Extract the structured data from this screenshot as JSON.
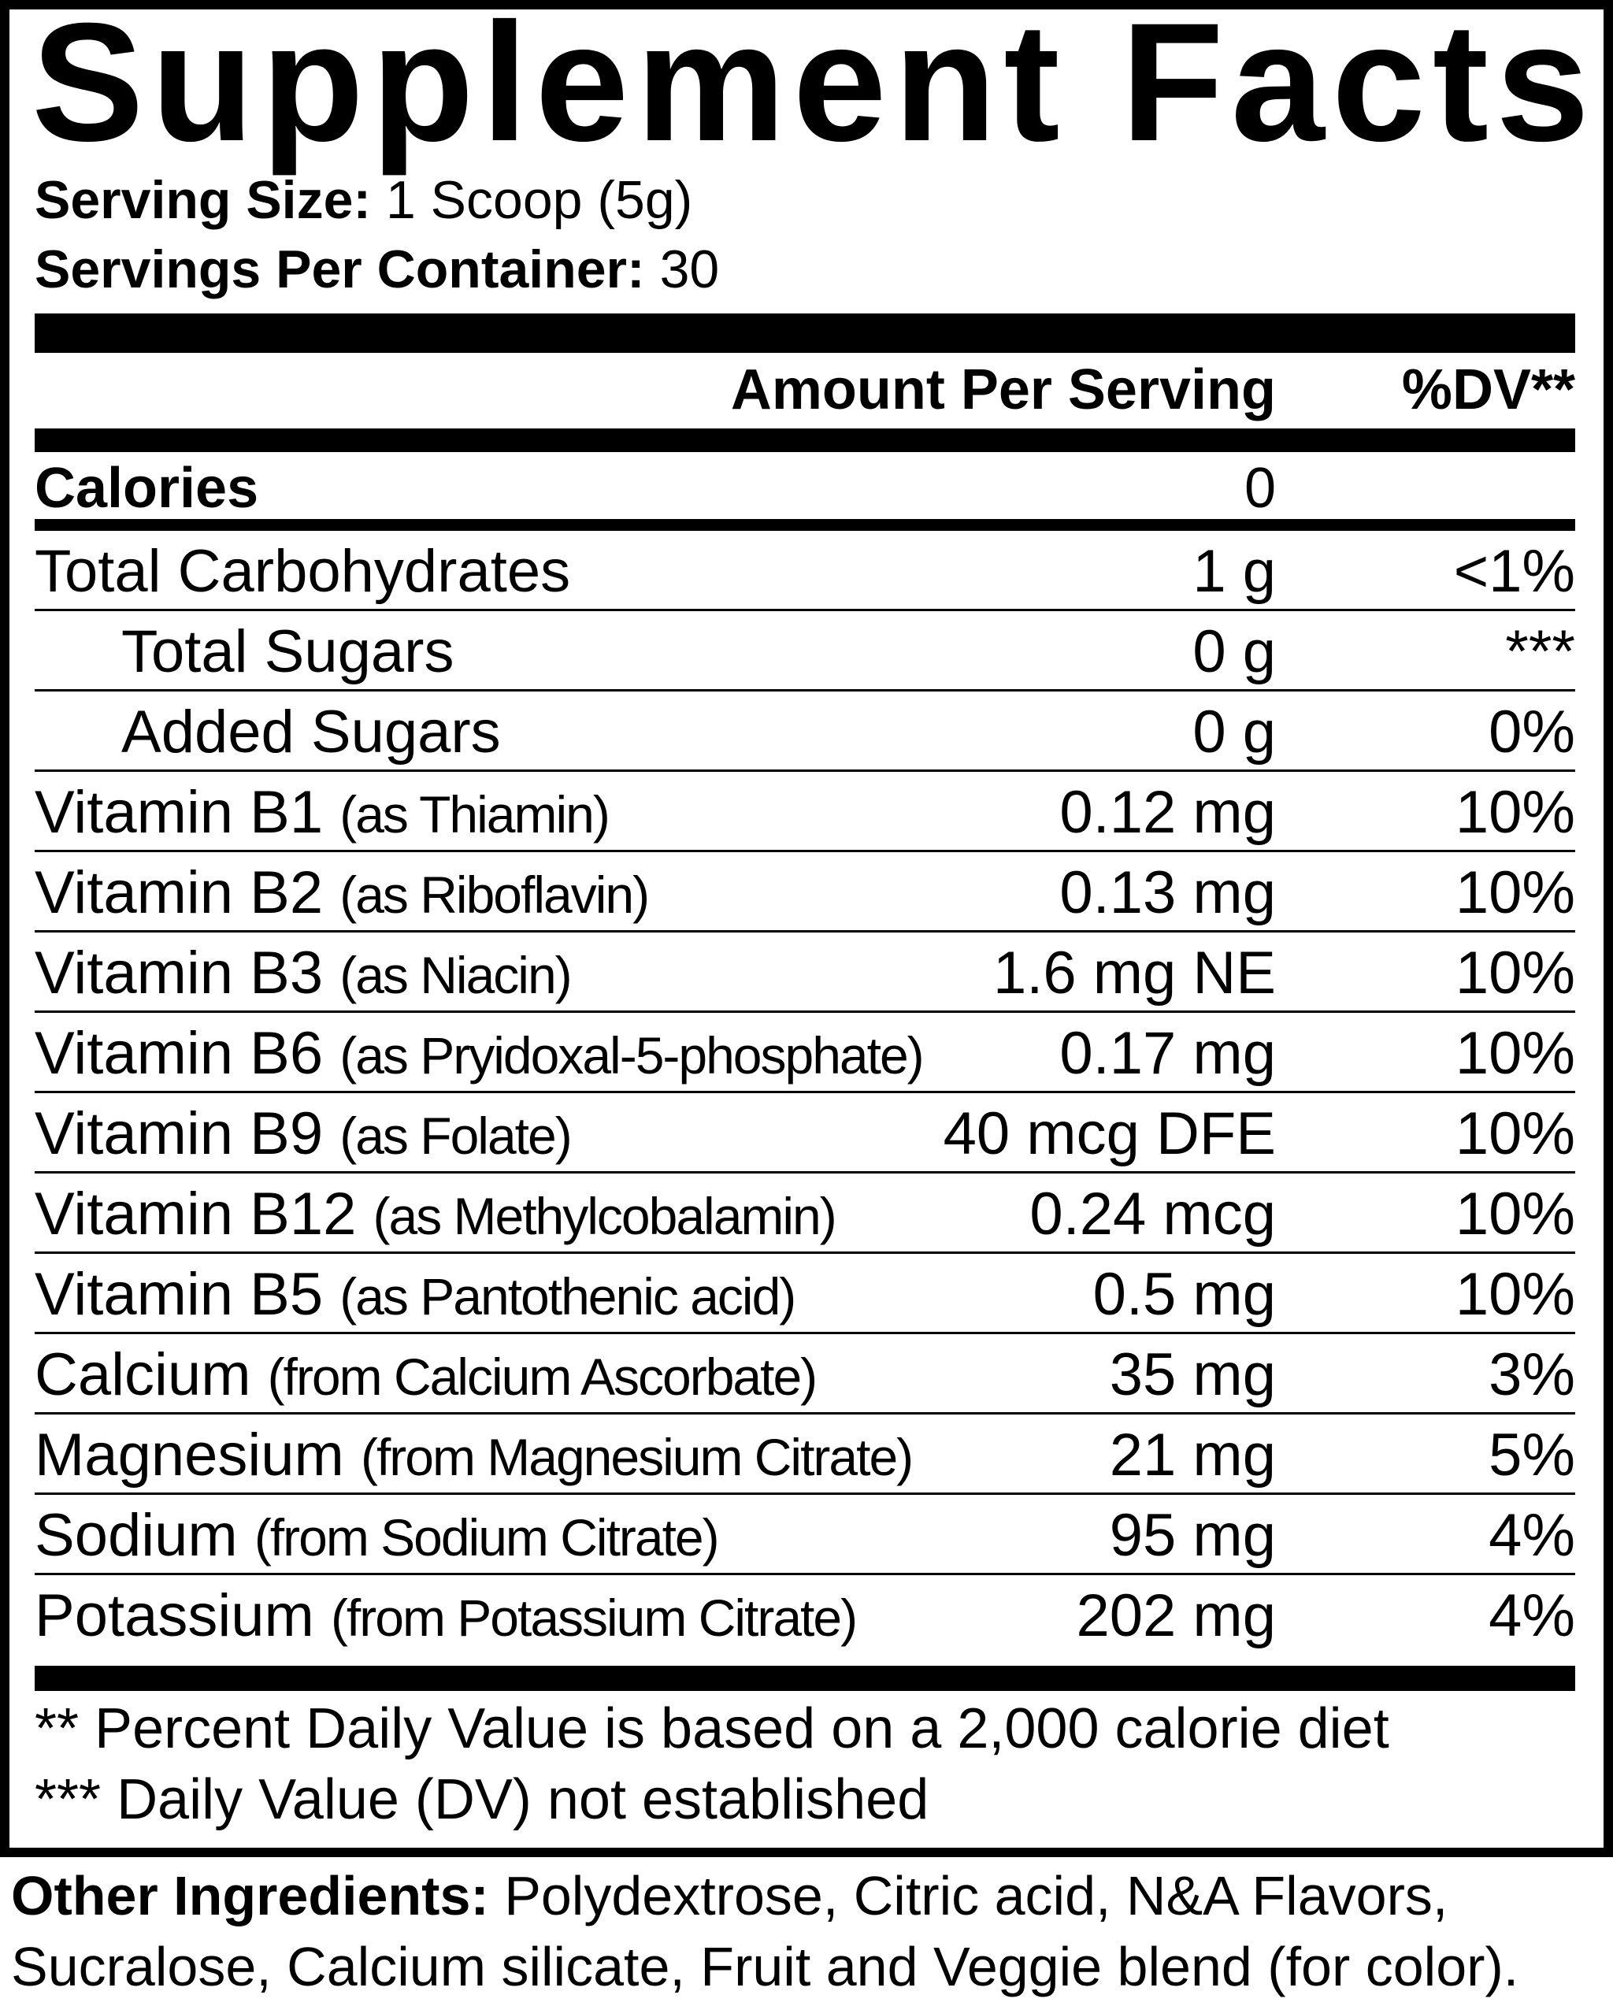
{
  "title": "Supplement Facts",
  "serving": {
    "size_label": "Serving Size:",
    "size_value": "1 Scoop (5g)",
    "per_container_label": "Servings Per Container:",
    "per_container_value": "30"
  },
  "header": {
    "amount": "Amount Per Serving",
    "dv": "%DV**"
  },
  "calories": {
    "label": "Calories",
    "amount": "0"
  },
  "rows": [
    {
      "name": "Total Carbohydrates",
      "sub": "",
      "amount": "1 g",
      "dv": "<1%"
    },
    {
      "name": "Total Sugars",
      "sub": "",
      "amount": "0 g",
      "dv": "***"
    },
    {
      "name": "Added Sugars",
      "sub": "",
      "amount": "0 g",
      "dv": "0%"
    },
    {
      "name": "Vitamin B1",
      "sub": "(as Thiamin)",
      "amount": "0.12 mg",
      "dv": "10%"
    },
    {
      "name": "Vitamin B2",
      "sub": "(as Riboflavin)",
      "amount": "0.13 mg",
      "dv": "10%"
    },
    {
      "name": "Vitamin B3",
      "sub": "(as Niacin)",
      "amount": "1.6 mg NE",
      "dv": "10%"
    },
    {
      "name": "Vitamin B6",
      "sub": "(as Pryidoxal-5-phosphate)",
      "amount": "0.17 mg",
      "dv": "10%"
    },
    {
      "name": "Vitamin B9",
      "sub": "(as Folate)",
      "amount": "40 mcg DFE",
      "dv": "10%"
    },
    {
      "name": "Vitamin B12",
      "sub": "(as Methylcobalamin)",
      "amount": "0.24 mcg",
      "dv": "10%"
    },
    {
      "name": "Vitamin B5",
      "sub": "(as Pantothenic acid)",
      "amount": "0.5 mg",
      "dv": "10%"
    },
    {
      "name": "Calcium",
      "sub": "(from Calcium Ascorbate)",
      "amount": "35 mg",
      "dv": "3%"
    },
    {
      "name": "Magnesium",
      "sub": "(from Magnesium Citrate)",
      "amount": "21 mg",
      "dv": "5%"
    },
    {
      "name": "Sodium",
      "sub": "(from Sodium Citrate)",
      "amount": "95 mg",
      "dv": "4%"
    },
    {
      "name": "Potassium",
      "sub": "(from Potassium Citrate)",
      "amount": "202 mg",
      "dv": "4%"
    }
  ],
  "footnotes": [
    "** Percent Daily Value is based on a 2,000 calorie diet",
    "*** Daily Value (DV) not established"
  ],
  "other_ingredients": {
    "label": "Other Ingredients:",
    "text": "Polydextrose, Citric acid, N&A Flavors, Sucralose, Calcium silicate, Fruit and Veggie blend (for color)."
  }
}
